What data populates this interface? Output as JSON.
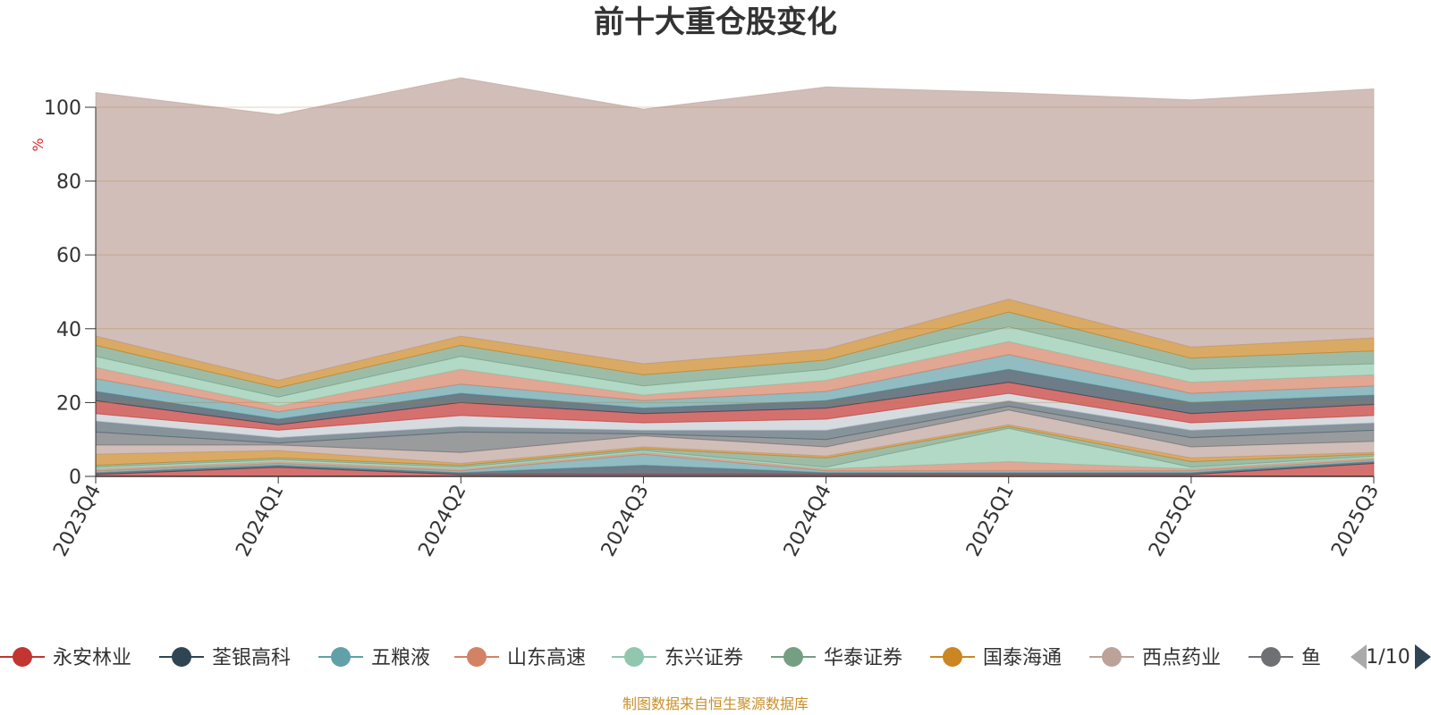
{
  "footer": {
    "source": "制图数据来自恒生聚源数据库"
  },
  "legend": {
    "page_indicator": "1/10",
    "visible_items": [
      {
        "name": "永安林业",
        "color": "#c23531"
      },
      {
        "name": "荃银高科",
        "color": "#2f4554"
      },
      {
        "name": "五粮液",
        "color": "#61a0a8"
      },
      {
        "name": "山东高速",
        "color": "#d48265"
      },
      {
        "name": "东兴证券",
        "color": "#91c7ae"
      },
      {
        "name": "华泰证券",
        "color": "#749f83"
      },
      {
        "name": "国泰海通",
        "color": "#ca8622"
      },
      {
        "name": "西点药业",
        "color": "#bda29a"
      },
      {
        "name": "鱼",
        "color": "#6e7074"
      }
    ],
    "prev_icon": "triangle-left-icon",
    "next_icon": "triangle-right-icon",
    "prev_color": "#aaaaaa",
    "next_color": "#2f4554"
  },
  "chart_data": {
    "type": "area",
    "title": "前十大重仓股变化",
    "ylabel": "%",
    "xlabel": "",
    "ylim": [
      0,
      100
    ],
    "yticks": [
      "0",
      "20",
      "40",
      "60",
      "80",
      "100"
    ],
    "categories": [
      "2023Q4",
      "2024Q1",
      "2024Q2",
      "2024Q3",
      "2024Q4",
      "2025Q1",
      "2025Q2",
      "2025Q3"
    ],
    "grid": true,
    "stacked": true,
    "opacity": 0.7,
    "colors": [
      "#c23531",
      "#2f4554",
      "#61a0a8",
      "#d48265",
      "#91c7ae",
      "#749f83",
      "#ca8622",
      "#bda29a",
      "#6e7074",
      "#546570",
      "#c4ccd3"
    ],
    "series": [
      {
        "values": [
          0.5,
          2.5,
          0.5,
          0.5,
          0.5,
          0.5,
          0.5,
          3.5
        ]
      },
      {
        "values": [
          0.5,
          0.5,
          0.5,
          2.5,
          0.5,
          0.5,
          0.5,
          0.5
        ]
      },
      {
        "values": [
          0.5,
          0.5,
          0.5,
          3.0,
          0.5,
          0.5,
          0.5,
          0.5
        ]
      },
      {
        "values": [
          0.5,
          0.5,
          0.5,
          0.5,
          0.5,
          2.5,
          0.5,
          0.5
        ]
      },
      {
        "values": [
          0.5,
          0.5,
          0.5,
          0.5,
          0.5,
          9.0,
          0.5,
          0.5
        ]
      },
      {
        "values": [
          0.5,
          0.5,
          0.5,
          0.5,
          2.5,
          0.5,
          1.5,
          0.5
        ]
      },
      {
        "values": [
          3.0,
          2.0,
          0.5,
          0.5,
          0.5,
          0.5,
          1.0,
          0.5
        ]
      },
      {
        "values": [
          2.5,
          1.5,
          3.0,
          3.0,
          2.5,
          4.0,
          3.0,
          3.0
        ]
      },
      {
        "values": [
          3.5,
          0.5,
          5.5,
          0.5,
          2.0,
          1.0,
          2.5,
          3.0
        ]
      },
      {
        "values": [
          3.0,
          1.5,
          1.5,
          1.0,
          2.5,
          1.5,
          2.0,
          2.0
        ]
      },
      {
        "values": [
          2.0,
          2.0,
          3.0,
          2.0,
          3.0,
          2.0,
          2.0,
          2.0
        ]
      },
      {
        "values": [
          3.5,
          1.5,
          3.5,
          2.5,
          3.0,
          3.0,
          2.5,
          3.0
        ]
      },
      {
        "values": [
          2.5,
          1.5,
          2.5,
          1.5,
          2.0,
          3.5,
          3.0,
          2.5
        ]
      },
      {
        "values": [
          3.5,
          2.0,
          2.5,
          2.0,
          2.5,
          4.0,
          2.5,
          2.5
        ]
      },
      {
        "values": [
          3.0,
          1.5,
          4.0,
          1.5,
          3.0,
          3.5,
          3.0,
          3.0
        ]
      },
      {
        "values": [
          3.0,
          2.5,
          3.5,
          2.5,
          3.0,
          4.0,
          3.5,
          3.0
        ]
      },
      {
        "values": [
          3.0,
          2.5,
          3.0,
          3.0,
          2.5,
          4.0,
          3.0,
          3.5
        ]
      },
      {
        "values": [
          2.5,
          2.0,
          2.5,
          3.0,
          3.0,
          3.5,
          3.0,
          3.5
        ]
      },
      {
        "values": [
          66.0,
          72.0,
          70.0,
          69.0,
          71.0,
          56.0,
          67.0,
          67.5
        ]
      }
    ]
  }
}
